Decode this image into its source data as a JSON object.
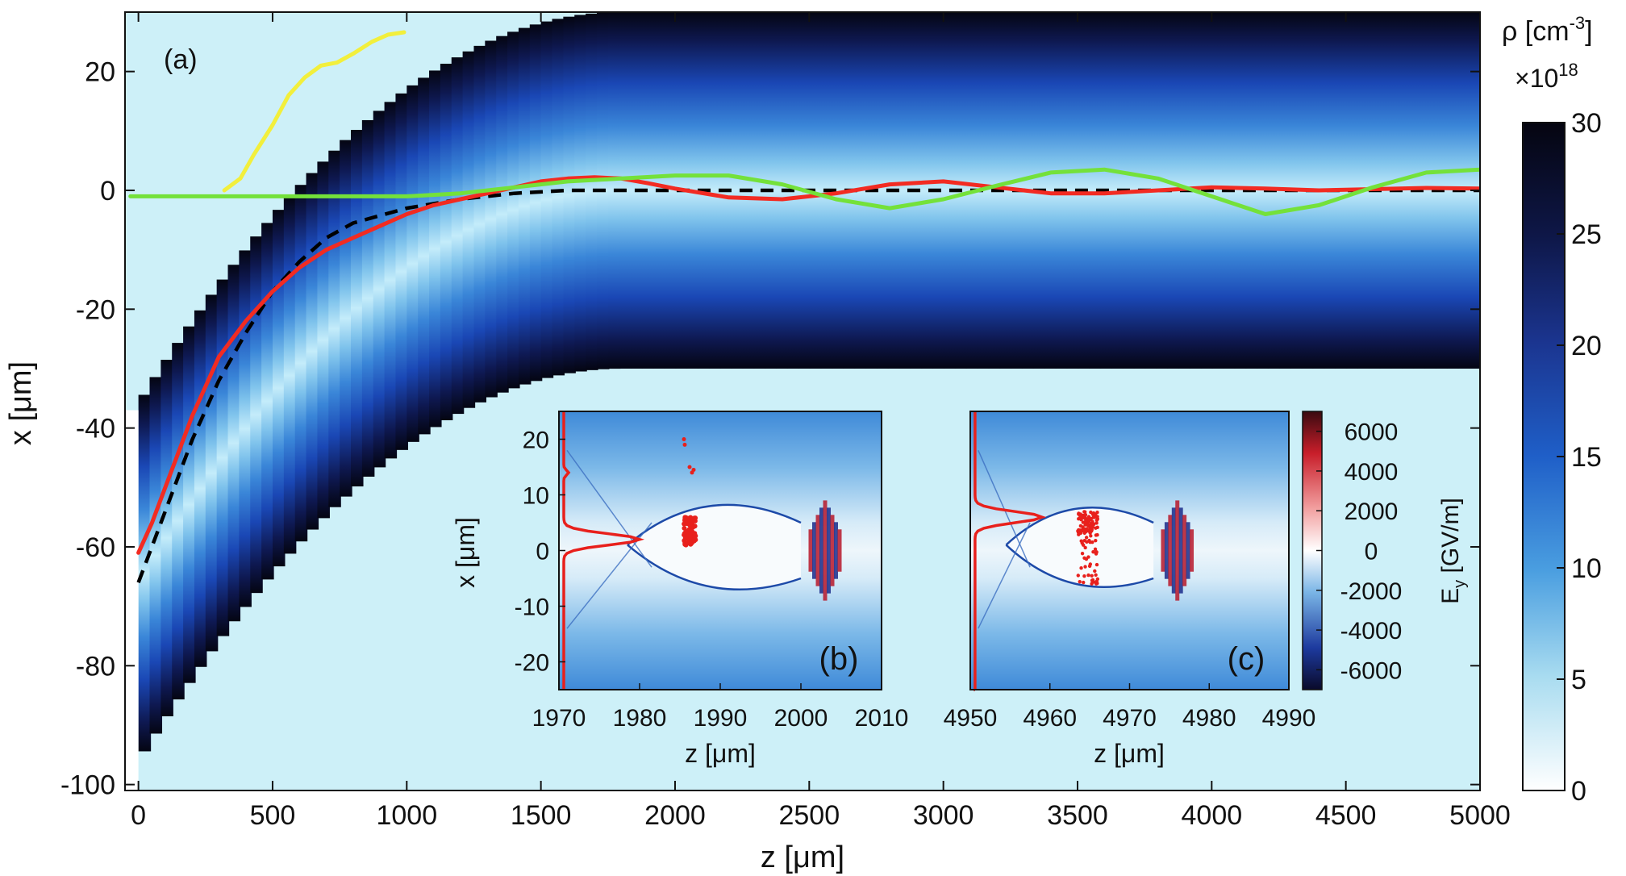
{
  "chart_data": [
    {
      "id": "a",
      "type": "heatmap",
      "panel_label": "(a)",
      "xlabel": "z [μm]",
      "ylabel": "x [μm]",
      "xlim": [
        -50,
        5000
      ],
      "ylim": [
        -101,
        30
      ],
      "xticks": [
        0,
        500,
        1000,
        1500,
        2000,
        2500,
        3000,
        3500,
        4000,
        4500,
        5000
      ],
      "yticks": [
        20,
        0,
        -20,
        -40,
        -60,
        -80,
        -100
      ],
      "colorbar": {
        "label_main": "ρ [cm",
        "label_exp": "-3",
        "label_close": "]",
        "multiplier_base": "×10",
        "multiplier_exp": "18",
        "ticks": [
          30,
          25,
          20,
          15,
          10,
          5,
          0
        ],
        "range": [
          0,
          30
        ]
      },
      "channel": {
        "description_free": true,
        "half_width": 30,
        "bend_end_z": 1800,
        "start_center_x": -66
      },
      "series": [
        {
          "color": "#000000",
          "style": "dashed",
          "points": [
            [
              0,
              -66
            ],
            [
              100,
              -54
            ],
            [
              200,
              -42
            ],
            [
              300,
              -32
            ],
            [
              400,
              -24
            ],
            [
              500,
              -17
            ],
            [
              600,
              -12
            ],
            [
              700,
              -8
            ],
            [
              800,
              -5.5
            ],
            [
              1000,
              -3
            ],
            [
              1200,
              -1.5
            ],
            [
              1400,
              -0.5
            ],
            [
              1600,
              0
            ],
            [
              5000,
              0
            ]
          ]
        },
        {
          "color": "#f22b22",
          "points": [
            [
              0,
              -61
            ],
            [
              50,
              -56
            ],
            [
              100,
              -50
            ],
            [
              200,
              -38
            ],
            [
              300,
              -28
            ],
            [
              400,
              -22
            ],
            [
              500,
              -17
            ],
            [
              600,
              -13
            ],
            [
              700,
              -10
            ],
            [
              800,
              -8
            ],
            [
              900,
              -6
            ],
            [
              1000,
              -4
            ],
            [
              1100,
              -2.5
            ],
            [
              1200,
              -1.5
            ],
            [
              1300,
              -0.5
            ],
            [
              1400,
              0.5
            ],
            [
              1500,
              1.5
            ],
            [
              1600,
              2
            ],
            [
              1700,
              2.2
            ],
            [
              1800,
              2
            ],
            [
              1900,
              1.2
            ],
            [
              2000,
              0.3
            ],
            [
              2200,
              -1.2
            ],
            [
              2400,
              -1.5
            ],
            [
              2600,
              -0.5
            ],
            [
              2800,
              1
            ],
            [
              3000,
              1.5
            ],
            [
              3200,
              0.5
            ],
            [
              3400,
              -0.5
            ],
            [
              3600,
              -0.5
            ],
            [
              3800,
              0
            ],
            [
              4000,
              0.5
            ],
            [
              4200,
              0.3
            ],
            [
              4400,
              0
            ],
            [
              4600,
              0.2
            ],
            [
              4800,
              0.4
            ],
            [
              5000,
              0.3
            ]
          ]
        },
        {
          "color": "#74e13a",
          "points": [
            [
              -30,
              -1
            ],
            [
              200,
              -1
            ],
            [
              500,
              -1
            ],
            [
              800,
              -1
            ],
            [
              1000,
              -1
            ],
            [
              1200,
              -0.5
            ],
            [
              1400,
              0.5
            ],
            [
              1600,
              1.5
            ],
            [
              1800,
              2
            ],
            [
              2000,
              2.5
            ],
            [
              2200,
              2.5
            ],
            [
              2400,
              1
            ],
            [
              2600,
              -1.5
            ],
            [
              2800,
              -3
            ],
            [
              3000,
              -1.5
            ],
            [
              3200,
              0.8
            ],
            [
              3400,
              3
            ],
            [
              3600,
              3.5
            ],
            [
              3800,
              2
            ],
            [
              4000,
              -1
            ],
            [
              4200,
              -4
            ],
            [
              4400,
              -2.5
            ],
            [
              4600,
              0.5
            ],
            [
              4800,
              3
            ],
            [
              5000,
              3.5
            ]
          ]
        },
        {
          "color": "#f2ef3c",
          "points": [
            [
              320,
              0
            ],
            [
              380,
              2
            ],
            [
              430,
              6
            ],
            [
              500,
              11
            ],
            [
              560,
              16
            ],
            [
              620,
              19
            ],
            [
              680,
              21
            ],
            [
              740,
              21.5
            ],
            [
              800,
              23
            ],
            [
              870,
              25
            ],
            [
              930,
              26.2
            ],
            [
              990,
              26.6
            ]
          ]
        }
      ]
    },
    {
      "id": "b",
      "type": "heatmap",
      "panel_label": "(b)",
      "xlabel": "z [μm]",
      "ylabel": "x [μm]",
      "xlim": [
        1970,
        2010
      ],
      "ylim": [
        -25,
        25
      ],
      "xticks": [
        1970,
        1980,
        1990,
        2000,
        2010
      ],
      "yticks": [
        20,
        10,
        0,
        -10,
        -20
      ],
      "laser_center_z": 2003,
      "bunch_z_range": [
        1985.5,
        1987
      ],
      "bunch_x_range": [
        1,
        6
      ],
      "profile_color": "#e8201c",
      "profile_peak": {
        "x": 2,
        "z": 1980
      }
    },
    {
      "id": "c",
      "type": "heatmap",
      "panel_label": "(c)",
      "xlabel": "z [μm]",
      "ylabel": "x [μm]",
      "xlim": [
        4950,
        4990
      ],
      "ylim": [
        -25,
        25
      ],
      "xticks": [
        4950,
        4960,
        4970,
        4980,
        4990
      ],
      "laser_center_z": 4976,
      "bunch_z_range": [
        4963.5,
        4966
      ],
      "bunch_x_range": [
        -6,
        7
      ],
      "profile_color": "#e8201c",
      "profile_peak": {
        "x": 6,
        "z": 4959
      },
      "colorbar": {
        "label_main": "E",
        "label_sub": "y",
        "label_rest": " [GV/m]",
        "ticks": [
          6000,
          4000,
          2000,
          0,
          -2000,
          -4000,
          -6000
        ],
        "range": [
          -7000,
          7000
        ]
      }
    }
  ]
}
